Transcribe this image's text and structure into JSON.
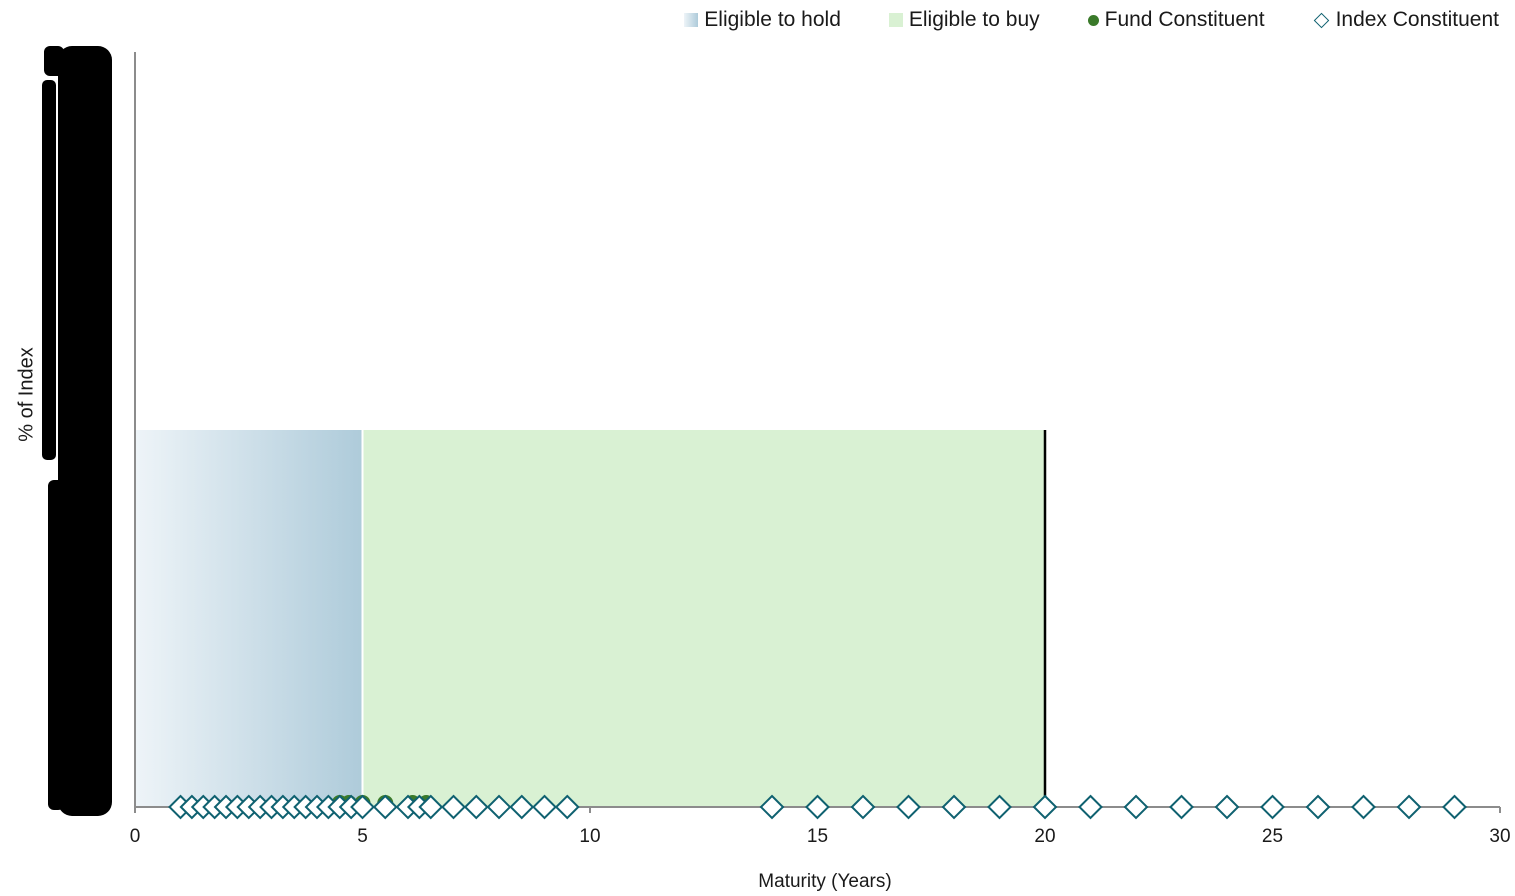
{
  "chart_data": {
    "type": "scatter",
    "xlabel": "Maturity (Years)",
    "ylabel": "% of Index",
    "xlim": [
      0,
      30
    ],
    "x_ticks": [
      "0",
      "5",
      "10",
      "15",
      "20",
      "25",
      "30"
    ],
    "legend": {
      "placement": "top-right",
      "items": [
        {
          "name": "Eligible to hold",
          "kind": "gradient-square",
          "color": "#aecbda"
        },
        {
          "name": "Eligible to buy",
          "kind": "square",
          "color": "#d9f1d3"
        },
        {
          "name": "Fund Constituent",
          "kind": "dot",
          "color": "#3a7a2a"
        },
        {
          "name": "Index Constituent",
          "kind": "diamond",
          "color": "#0f6170"
        }
      ]
    },
    "bands": [
      {
        "name": "Eligible to hold",
        "x0": 0,
        "x1": 5,
        "color_start": "#eef4f8",
        "color_end": "#aecbda"
      },
      {
        "name": "Eligible to buy",
        "x0": 5,
        "x1": 20,
        "color": "#d9f1d3"
      }
    ],
    "series": [
      {
        "name": "Fund Constituent",
        "x": [
          4.5,
          4.7,
          5.0,
          5.5,
          6.1,
          6.4
        ],
        "y": [
          0,
          0,
          0,
          0,
          0,
          0
        ]
      },
      {
        "name": "Index Constituent",
        "x": [
          1.0,
          1.25,
          1.5,
          1.75,
          2.0,
          2.25,
          2.5,
          2.75,
          3.0,
          3.25,
          3.5,
          3.75,
          4.0,
          4.25,
          4.5,
          4.75,
          5.0,
          5.5,
          6.0,
          6.25,
          6.5,
          7.0,
          7.5,
          8.0,
          8.5,
          9.0,
          9.5,
          14.0,
          15.0,
          16.0,
          17.0,
          18.0,
          19.0,
          20.0,
          21.0,
          22.0,
          23.0,
          24.0,
          25.0,
          26.0,
          27.0,
          28.0,
          29.0
        ],
        "y": [
          0,
          0,
          0,
          0,
          0,
          0,
          0,
          0,
          0,
          0,
          0,
          0,
          0,
          0,
          0,
          0,
          0,
          0,
          0,
          0,
          0,
          0,
          0,
          0,
          0,
          0,
          0,
          0,
          0,
          0,
          0,
          0,
          0,
          0,
          0,
          0,
          0,
          0,
          0,
          0,
          0,
          0,
          0
        ]
      }
    ],
    "vertical_marker_x": 20,
    "grid": false,
    "colors": {
      "axis": "#8c8c8c",
      "marker_line": "#000000"
    }
  }
}
